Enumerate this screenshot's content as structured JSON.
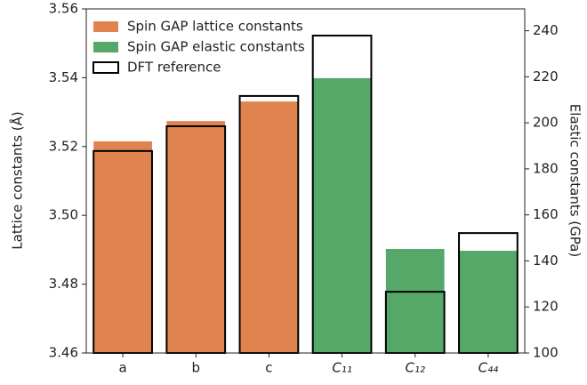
{
  "chart_data": {
    "type": "bar",
    "categories": [
      "a",
      "b",
      "c",
      "C₁₁",
      "C₁₂",
      "C₄₄"
    ],
    "ylabel": "Lattice constants (Å)",
    "y2label": "Elastic constants (GPa)",
    "ylim": [
      3.46,
      3.56
    ],
    "yticks": [
      3.46,
      3.48,
      {
        "value": 3.5,
        "label": "3.50"
      },
      3.52,
      3.54,
      3.56
    ],
    "y2lim": [
      100,
      249.5
    ],
    "y2ticks": [
      100,
      120,
      140,
      160,
      180,
      200,
      220,
      240
    ],
    "legend": "upper left",
    "series": [
      {
        "name": "Spin GAP lattice constants",
        "color": "#e0844f",
        "axis": "y",
        "values": [
          3.5215,
          3.5274,
          3.5331,
          null,
          null,
          null
        ]
      },
      {
        "name": "Spin GAP elastic constants",
        "color": "#55a868",
        "axis": "y2",
        "values": [
          null,
          null,
          null,
          219.4,
          145.2,
          144.4
        ]
      },
      {
        "name": "DFT reference",
        "color": "none",
        "edgecolor": "#000000",
        "axes": [
          "y",
          "y",
          "y",
          "y2",
          "y2",
          "y2"
        ],
        "values": [
          3.5187,
          3.5259,
          3.5347,
          237.9,
          126.6,
          152.1
        ]
      }
    ]
  }
}
